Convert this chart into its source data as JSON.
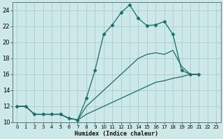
{
  "title": "",
  "xlabel": "Humidex (Indice chaleur)",
  "bg_color": "#cce8e8",
  "grid_color": "#aacccc",
  "line_color": "#1a6b6b",
  "xlim": [
    -0.5,
    23.5
  ],
  "ylim": [
    10,
    25
  ],
  "xticks": [
    0,
    1,
    2,
    3,
    4,
    5,
    6,
    7,
    8,
    9,
    10,
    11,
    12,
    13,
    14,
    15,
    16,
    17,
    18,
    19,
    20,
    21,
    22,
    23
  ],
  "yticks": [
    10,
    12,
    14,
    16,
    18,
    20,
    22,
    24
  ],
  "series": [
    {
      "x": [
        0,
        1,
        2,
        3,
        4,
        5,
        6,
        7,
        8,
        9,
        10,
        11,
        12,
        13,
        14,
        15,
        16,
        17,
        18,
        19,
        20,
        21
      ],
      "y": [
        12,
        12,
        11,
        11,
        11,
        11,
        10.5,
        10.3,
        13,
        16.5,
        21,
        22.2,
        23.7,
        24.7,
        23,
        22.1,
        22.2,
        22.6,
        21,
        16.5,
        16,
        16
      ],
      "marker": "D",
      "markersize": 2.5,
      "linewidth": 0.9
    },
    {
      "x": [
        0,
        1,
        2,
        3,
        4,
        5,
        6,
        7,
        8,
        9,
        10,
        11,
        12,
        13,
        14,
        15,
        16,
        17,
        18,
        19,
        20,
        21
      ],
      "y": [
        12,
        12,
        11,
        11,
        11,
        11,
        10.5,
        10.3,
        12,
        13,
        14,
        15,
        16,
        17,
        18,
        18.5,
        18.7,
        18.5,
        19,
        17,
        16,
        16
      ],
      "marker": null,
      "markersize": 0,
      "linewidth": 0.9
    },
    {
      "x": [
        0,
        1,
        2,
        3,
        4,
        5,
        6,
        7,
        8,
        9,
        10,
        11,
        12,
        13,
        14,
        15,
        16,
        17,
        18,
        19,
        20,
        21
      ],
      "y": [
        12,
        12,
        11,
        11,
        11,
        11,
        10.5,
        10.3,
        11,
        11.5,
        12,
        12.5,
        13,
        13.5,
        14,
        14.5,
        15,
        15.2,
        15.5,
        15.7,
        16,
        16
      ],
      "marker": null,
      "markersize": 0,
      "linewidth": 0.9
    }
  ]
}
